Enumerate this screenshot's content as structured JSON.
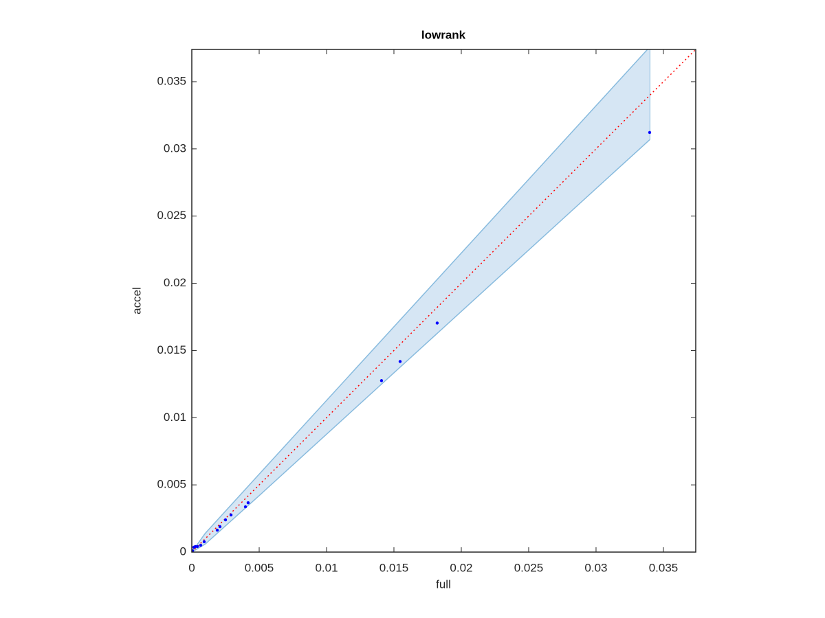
{
  "chart_data": {
    "type": "scatter",
    "title": "lowrank",
    "xlabel": "full",
    "ylabel": "accel",
    "xlim": [
      0,
      0.0374
    ],
    "ylim": [
      0,
      0.0374
    ],
    "xticks": [
      0,
      0.005,
      0.01,
      0.015,
      0.02,
      0.025,
      0.03,
      0.035
    ],
    "yticks": [
      0,
      0.005,
      0.01,
      0.015,
      0.02,
      0.025,
      0.03,
      0.035
    ],
    "color": "#0000ff",
    "diagonal": true,
    "diagonal_color": "#ff0000",
    "band": {
      "x": [
        0,
        0.001,
        0.005,
        0.034
      ],
      "upper": [
        0,
        0.0014,
        0.0058,
        0.0376
      ],
      "lower": [
        0,
        0.0006,
        0.0042,
        0.0307
      ],
      "fill": "#d6e6f4",
      "edge": "#88bbde"
    },
    "x": [
      0.03398,
      0.01821,
      0.01546,
      0.01408,
      0.00418,
      0.00398,
      0.00291,
      0.0025,
      0.00209,
      0.00189,
      0.00092,
      0.00066,
      0.00041,
      0.00015,
      0.00026,
      5e-05,
      0
    ],
    "values": [
      0.03122,
      0.01704,
      0.01418,
      0.01276,
      0.00367,
      0.00337,
      0.00276,
      0.0024,
      0.00189,
      0.00163,
      0.00077,
      0.00051,
      0.00041,
      0.00036,
      0.00041,
      0.0001,
      0
    ]
  }
}
